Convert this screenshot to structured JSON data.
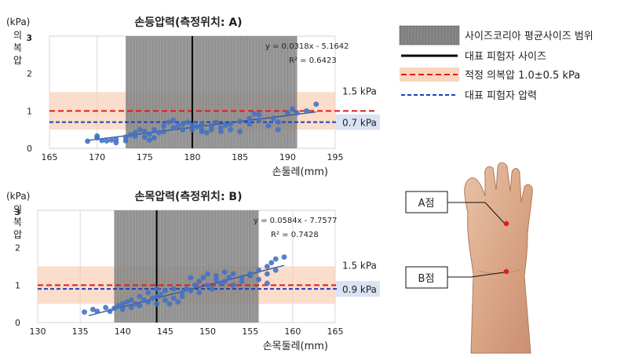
{
  "chart_data": [
    {
      "type": "scatter",
      "title": "손등압력(측정위치: A)",
      "xlabel": "손둘레(mm)",
      "ylabel_unit": "(kPa)",
      "ylabel_chars": [
        "의",
        "복",
        "압"
      ],
      "xlim": [
        165,
        195
      ],
      "ylim": [
        0,
        3
      ],
      "xticks": [
        165,
        170,
        175,
        180,
        185,
        190,
        195
      ],
      "yticks": [
        0,
        1,
        2,
        3
      ],
      "grid": true,
      "size_korea_range": [
        173,
        191
      ],
      "subject_size": 180,
      "proper_pressure": {
        "center": 1.0,
        "low": 0.5,
        "high": 1.5
      },
      "subject_pressure": 0.7,
      "labels": {
        "upper": "1.5 kPa",
        "subject": "0.7 kPa"
      },
      "trendline": {
        "slope": 0.0318,
        "intercept": -5.1642,
        "x_range": [
          169,
          193
        ]
      },
      "equation": "y = 0.0318x - 5.1642",
      "r2": "R² = 0.6423",
      "points": [
        [
          169,
          0.19
        ],
        [
          170,
          0.28
        ],
        [
          170,
          0.33
        ],
        [
          170.5,
          0.21
        ],
        [
          171,
          0.2
        ],
        [
          171.5,
          0.22
        ],
        [
          172,
          0.15
        ],
        [
          172,
          0.24
        ],
        [
          173,
          0.2
        ],
        [
          173,
          0.3
        ],
        [
          173.5,
          0.36
        ],
        [
          174,
          0.42
        ],
        [
          174,
          0.32
        ],
        [
          174.5,
          0.5
        ],
        [
          175,
          0.3
        ],
        [
          175,
          0.45
        ],
        [
          175.5,
          0.38
        ],
        [
          175.5,
          0.22
        ],
        [
          176,
          0.5
        ],
        [
          176,
          0.28
        ],
        [
          176.5,
          0.42
        ],
        [
          177,
          0.6
        ],
        [
          177,
          0.45
        ],
        [
          177.5,
          0.7
        ],
        [
          178,
          0.55
        ],
        [
          178,
          0.75
        ],
        [
          178.5,
          0.6
        ],
        [
          179,
          0.5
        ],
        [
          179,
          0.65
        ],
        [
          179.5,
          0.7
        ],
        [
          180,
          0.5
        ],
        [
          180,
          0.62
        ],
        [
          180.5,
          0.58
        ],
        [
          181,
          0.5
        ],
        [
          181,
          0.65
        ],
        [
          181,
          0.45
        ],
        [
          181.5,
          0.42
        ],
        [
          182,
          0.6
        ],
        [
          182,
          0.5
        ],
        [
          182.5,
          0.7
        ],
        [
          183,
          0.55
        ],
        [
          183,
          0.45
        ],
        [
          183.5,
          0.62
        ],
        [
          184,
          0.5
        ],
        [
          184,
          0.65
        ],
        [
          185,
          0.45
        ],
        [
          185,
          0.72
        ],
        [
          186,
          0.8
        ],
        [
          186,
          0.65
        ],
        [
          186.5,
          0.92
        ],
        [
          187,
          0.75
        ],
        [
          187,
          0.9
        ],
        [
          188,
          0.6
        ],
        [
          188.5,
          0.8
        ],
        [
          189,
          0.5
        ],
        [
          189,
          0.7
        ],
        [
          190,
          0.95
        ],
        [
          190.5,
          1.05
        ],
        [
          191,
          0.95
        ],
        [
          192,
          1.0
        ],
        [
          193,
          1.18
        ]
      ]
    },
    {
      "type": "scatter",
      "title": "손목압력(측정위치: B)",
      "xlabel": "손목둘레(mm)",
      "ylabel_unit": "(kPa)",
      "ylabel_chars": [
        "의",
        "복",
        "압"
      ],
      "xlim": [
        130,
        165
      ],
      "ylim": [
        0,
        3
      ],
      "xticks": [
        130,
        135,
        140,
        145,
        150,
        155,
        160,
        165
      ],
      "yticks": [
        0,
        1,
        2,
        3
      ],
      "grid": true,
      "size_korea_range": [
        139,
        156
      ],
      "subject_size": 144,
      "proper_pressure": {
        "center": 1.0,
        "low": 0.5,
        "high": 1.5
      },
      "subject_pressure": 0.9,
      "labels": {
        "upper": "1.5 kPa",
        "subject": "0.9 kPa"
      },
      "trendline": {
        "slope": 0.0584,
        "intercept": -7.7577,
        "x_range": [
          136,
          159
        ]
      },
      "equation": "y = 0.0584x - 7.7577",
      "r2": "R² = 0.7428",
      "points": [
        [
          135.5,
          0.28
        ],
        [
          136.5,
          0.35
        ],
        [
          137,
          0.3
        ],
        [
          138,
          0.4
        ],
        [
          138.5,
          0.3
        ],
        [
          139,
          0.38
        ],
        [
          139.5,
          0.45
        ],
        [
          140,
          0.5
        ],
        [
          140,
          0.35
        ],
        [
          140.5,
          0.55
        ],
        [
          141,
          0.6
        ],
        [
          141,
          0.4
        ],
        [
          141.5,
          0.5
        ],
        [
          142,
          0.7
        ],
        [
          142,
          0.45
        ],
        [
          142.5,
          0.6
        ],
        [
          143,
          0.8
        ],
        [
          143,
          0.55
        ],
        [
          143.5,
          0.65
        ],
        [
          144,
          0.9
        ],
        [
          144,
          0.7
        ],
        [
          144,
          0.5
        ],
        [
          144.5,
          0.75
        ],
        [
          145,
          0.6
        ],
        [
          145,
          0.85
        ],
        [
          145.5,
          0.5
        ],
        [
          146,
          0.65
        ],
        [
          146,
          0.9
        ],
        [
          146.5,
          0.55
        ],
        [
          147,
          0.7
        ],
        [
          147,
          0.8
        ],
        [
          147.5,
          0.9
        ],
        [
          148,
          1.2
        ],
        [
          148,
          0.85
        ],
        [
          148.5,
          1.0
        ],
        [
          149,
          1.1
        ],
        [
          149,
          0.8
        ],
        [
          149.5,
          1.2
        ],
        [
          150,
          1.0
        ],
        [
          150,
          1.3
        ],
        [
          150.5,
          0.9
        ],
        [
          151,
          1.15
        ],
        [
          151,
          1.25
        ],
        [
          151.5,
          1.05
        ],
        [
          152,
          1.35
        ],
        [
          152,
          1.1
        ],
        [
          152.5,
          1.2
        ],
        [
          153,
          1.3
        ],
        [
          153,
          1.0
        ],
        [
          154,
          1.2
        ],
        [
          154,
          1.1
        ],
        [
          155,
          1.3
        ],
        [
          155,
          1.25
        ],
        [
          156,
          1.4
        ],
        [
          156,
          1.15
        ],
        [
          157,
          1.3
        ],
        [
          157,
          1.5
        ],
        [
          157,
          1.05
        ],
        [
          157.5,
          1.6
        ],
        [
          158,
          1.7
        ],
        [
          158,
          1.4
        ],
        [
          159,
          1.75
        ]
      ]
    }
  ],
  "legend": [
    {
      "label": "사이즈코리아 평균사이즈 범위",
      "kind": "range-box"
    },
    {
      "label": "대표 피험자 사이즈",
      "kind": "black-line"
    },
    {
      "label": "적정 의복압 1.0±0.5 kPa",
      "kind": "red-dashed"
    },
    {
      "label": "대표 피험자 압력",
      "kind": "blue-dashed"
    }
  ],
  "photo": {
    "label_a": "A점",
    "label_b": "B점"
  },
  "colors": {
    "point": "#4472c4",
    "trend": "#2f5597",
    "range": "#7f7f7f",
    "band": "#f8cbad",
    "red": "#e31a1c",
    "blue": "#1f3fbf",
    "chip": "#dae3f3"
  }
}
